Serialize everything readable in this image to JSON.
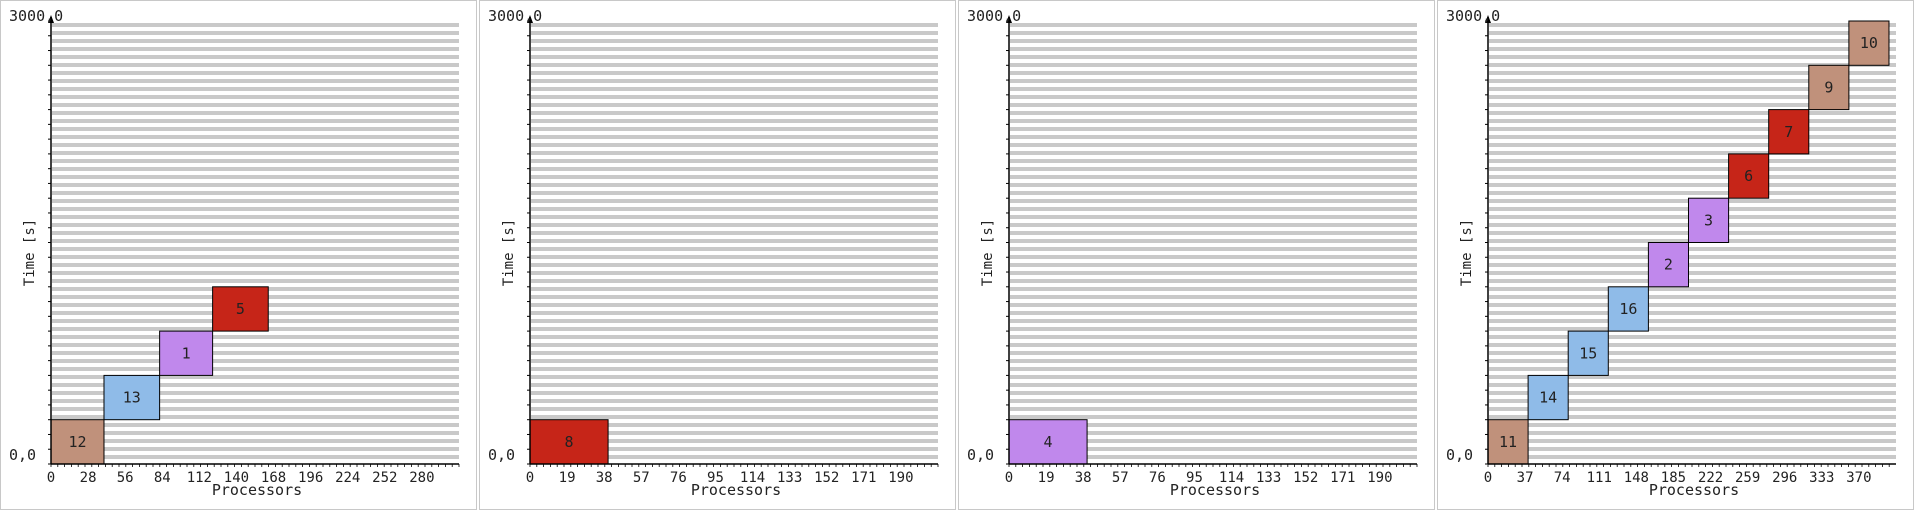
{
  "colors": {
    "brown": "#c0917b",
    "blue": "#8fbbe8",
    "purple": "#c088ec",
    "red": "#c62518",
    "stripe": "#c9c9c9",
    "axis": "#000000"
  },
  "chart_data": [
    {
      "type": "gantt",
      "ytop_label": "3000,0",
      "yzero_label": "0,0",
      "ylabel": "Time [s]",
      "xlabel": "Processors",
      "xlim": [
        0,
        308
      ],
      "ylim": [
        0,
        3000
      ],
      "x_ticks": [
        "0",
        "28",
        "56",
        "84",
        "112",
        "140",
        "168",
        "196",
        "224",
        "252",
        "280"
      ],
      "tasks": [
        {
          "label": "12",
          "x0": 0,
          "x1": 40,
          "y0": 0,
          "y1": 300,
          "color": "brown"
        },
        {
          "label": "13",
          "x0": 40,
          "x1": 82,
          "y0": 300,
          "y1": 600,
          "color": "blue"
        },
        {
          "label": "1",
          "x0": 82,
          "x1": 122,
          "y0": 600,
          "y1": 900,
          "color": "purple"
        },
        {
          "label": "5",
          "x0": 122,
          "x1": 164,
          "y0": 900,
          "y1": 1200,
          "color": "red"
        }
      ]
    },
    {
      "type": "gantt",
      "ytop_label": "3000,0",
      "yzero_label": "0,0",
      "ylabel": "Time [s]",
      "xlabel": "Processors",
      "xlim": [
        0,
        209
      ],
      "ylim": [
        0,
        3000
      ],
      "x_ticks": [
        "0",
        "19",
        "38",
        "57",
        "76",
        "95",
        "114",
        "133",
        "152",
        "171",
        "190"
      ],
      "tasks": [
        {
          "label": "8",
          "x0": 0,
          "x1": 40,
          "y0": 0,
          "y1": 300,
          "color": "red"
        }
      ]
    },
    {
      "type": "gantt",
      "ytop_label": "3000,0",
      "yzero_label": "0,0",
      "ylabel": "Time [s]",
      "xlabel": "Processors",
      "xlim": [
        0,
        209
      ],
      "ylim": [
        0,
        3000
      ],
      "x_ticks": [
        "0",
        "19",
        "38",
        "57",
        "76",
        "95",
        "114",
        "133",
        "152",
        "171",
        "190"
      ],
      "tasks": [
        {
          "label": "4",
          "x0": 0,
          "x1": 40,
          "y0": 0,
          "y1": 300,
          "color": "purple"
        }
      ]
    },
    {
      "type": "gantt",
      "ytop_label": "3000,0",
      "yzero_label": "0,0",
      "ylabel": "Time [s]",
      "xlabel": "Processors",
      "xlim": [
        0,
        407
      ],
      "ylim": [
        0,
        3000
      ],
      "x_ticks": [
        "0",
        "37",
        "74",
        "111",
        "148",
        "185",
        "222",
        "259",
        "296",
        "333",
        "370"
      ],
      "tasks": [
        {
          "label": "11",
          "x0": 0,
          "x1": 40,
          "y0": 0,
          "y1": 300,
          "color": "brown"
        },
        {
          "label": "14",
          "x0": 40,
          "x1": 80,
          "y0": 300,
          "y1": 600,
          "color": "blue"
        },
        {
          "label": "15",
          "x0": 80,
          "x1": 120,
          "y0": 600,
          "y1": 900,
          "color": "blue"
        },
        {
          "label": "16",
          "x0": 120,
          "x1": 160,
          "y0": 900,
          "y1": 1200,
          "color": "blue"
        },
        {
          "label": "2",
          "x0": 160,
          "x1": 200,
          "y0": 1200,
          "y1": 1500,
          "color": "purple"
        },
        {
          "label": "3",
          "x0": 200,
          "x1": 240,
          "y0": 1500,
          "y1": 1800,
          "color": "purple"
        },
        {
          "label": "6",
          "x0": 240,
          "x1": 280,
          "y0": 1800,
          "y1": 2100,
          "color": "red"
        },
        {
          "label": "7",
          "x0": 280,
          "x1": 320,
          "y0": 2100,
          "y1": 2400,
          "color": "red"
        },
        {
          "label": "9",
          "x0": 320,
          "x1": 360,
          "y0": 2400,
          "y1": 2700,
          "color": "brown"
        },
        {
          "label": "10",
          "x0": 360,
          "x1": 400,
          "y0": 2700,
          "y1": 3000,
          "color": "brown"
        }
      ]
    }
  ]
}
